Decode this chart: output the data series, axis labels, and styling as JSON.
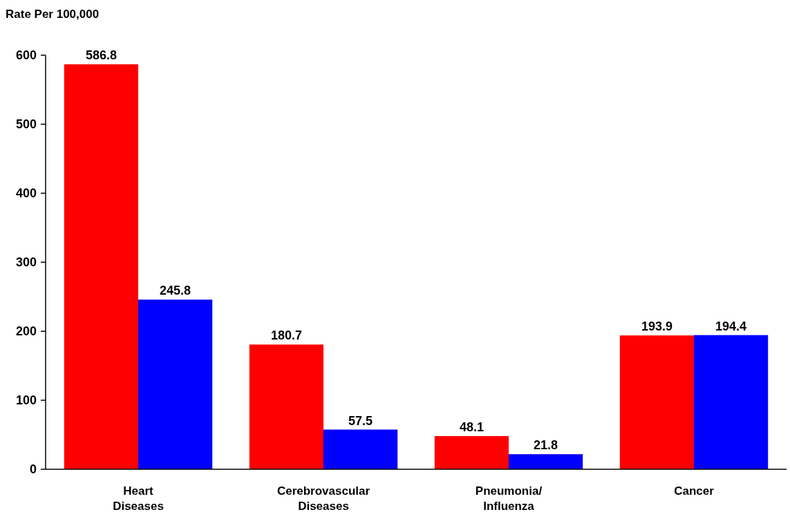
{
  "chart_data": {
    "type": "bar",
    "ylabel": "Rate Per 100,000",
    "categories": [
      "Heart Diseases",
      "Cerebrovascular Diseases",
      "Pneumonia/ Influenza",
      "Cancer"
    ],
    "series": [
      {
        "color": "#ff0000",
        "values": [
          586.8,
          180.7,
          48.1,
          193.9
        ]
      },
      {
        "color": "#0000ff",
        "values": [
          245.8,
          57.5,
          21.8,
          194.4
        ]
      }
    ],
    "ylim": [
      0,
      600
    ],
    "yticks": [
      0,
      100,
      200,
      300,
      400,
      500,
      600
    ],
    "data_labels": true
  }
}
